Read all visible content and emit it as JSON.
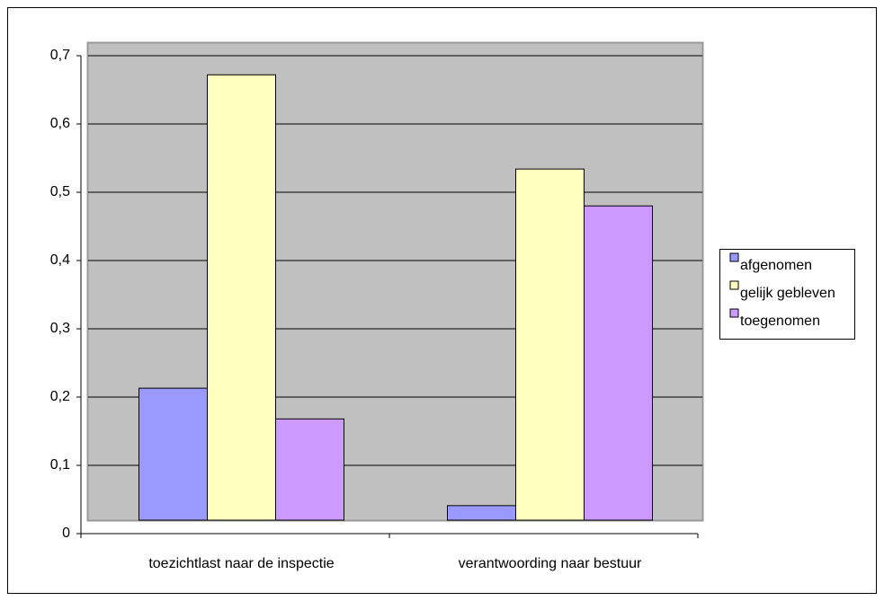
{
  "chart_data": {
    "type": "bar",
    "categories": [
      "toezichtlast naar de inspectie",
      "verantwoording naar bestuur"
    ],
    "series": [
      {
        "name": "afgenomen",
        "color": "#9999ff",
        "values": [
          0.213,
          0.041
        ]
      },
      {
        "name": "gelijk gebleven",
        "color": "#ffffc0",
        "values": [
          0.672,
          0.534
        ]
      },
      {
        "name": "toegenomen",
        "color": "#cc99ff",
        "values": [
          0.168,
          0.48
        ]
      }
    ],
    "ylim": [
      0,
      0.7
    ],
    "yticks": [
      0,
      {
        "value": 0.1,
        "label": "0,1"
      },
      {
        "value": 0.2,
        "label": "0,2"
      },
      {
        "value": 0.3,
        "label": "0,3"
      },
      {
        "value": 0.4,
        "label": "0,4"
      },
      {
        "value": 0.5,
        "label": "0,5"
      },
      {
        "value": 0.6,
        "label": "0,6"
      },
      {
        "value": 0.7,
        "label": "0,7"
      }
    ],
    "grid": true,
    "legend": "right"
  }
}
